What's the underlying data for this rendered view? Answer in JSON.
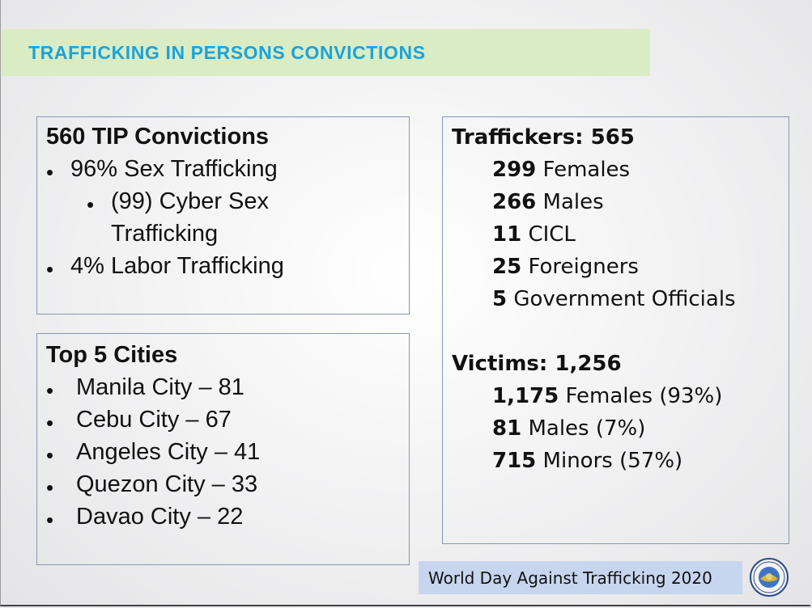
{
  "title": "TRAFFICKING IN PERSONS CONVICTIONS",
  "convictions": {
    "heading": "560 TIP Convictions",
    "sex_trafficking": "96% Sex Trafficking",
    "cyber_line1": "(99) Cyber Sex",
    "cyber_line2": "Trafficking",
    "labor": "4% Labor Trafficking"
  },
  "cities": {
    "heading": "Top 5 Cities",
    "items": [
      "Manila City – 81",
      "Cebu City – 67",
      "Angeles City – 41",
      "Quezon City – 33",
      "Davao City – 22"
    ]
  },
  "traffickers": {
    "heading": "Traffickers: 565",
    "rows": [
      {
        "num": "299",
        "label": " Females"
      },
      {
        "num": "266",
        "label": " Males"
      },
      {
        "num": "11",
        "label": " CICL"
      },
      {
        "num": "25",
        "label": " Foreigners"
      },
      {
        "num": "5",
        "label": " Government Officials"
      }
    ]
  },
  "victims": {
    "heading": "Victims: 1,256",
    "rows": [
      {
        "num": "1,175",
        "label": " Females (93%)"
      },
      {
        "num": "81",
        "label": " Males (7%)"
      },
      {
        "num": "715",
        "label": " Minors (57%)"
      }
    ]
  },
  "footer": {
    "text": "World Day Against Trafficking 2020",
    "seal_icon": "official-seal-icon"
  },
  "colors": {
    "title_text": "#1aa3dd",
    "title_bar": "#d9ecc4",
    "footer_bar": "#c7d6ee",
    "box_border": "#8a96ad"
  }
}
